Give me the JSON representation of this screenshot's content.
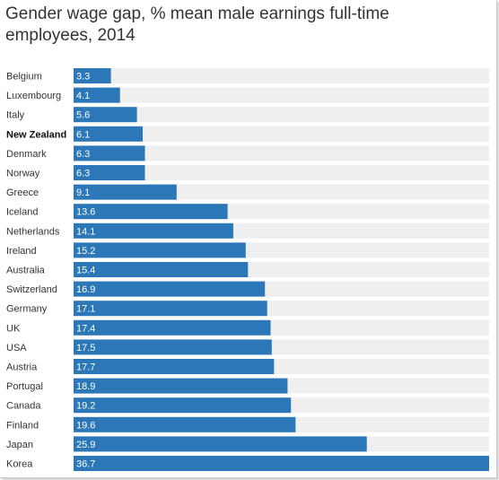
{
  "chart_data": {
    "type": "bar",
    "orientation": "horizontal",
    "title": "Gender wage gap, % mean male earnings full-time employees, 2014",
    "xlabel": "",
    "ylabel": "",
    "xlim": [
      0,
      36.7
    ],
    "grid": false,
    "highlight_category": "New Zealand",
    "colors": {
      "bar": "#2b77b7",
      "track": "#efefef",
      "text": "#333333"
    },
    "categories": [
      "Belgium",
      "Luxembourg",
      "Italy",
      "New Zealand",
      "Denmark",
      "Norway",
      "Greece",
      "Iceland",
      "Netherlands",
      "Ireland",
      "Australia",
      "Switzerland",
      "Germany",
      "UK",
      "USA",
      "Austria",
      "Portugal",
      "Canada",
      "Finland",
      "Japan",
      "Korea"
    ],
    "values": [
      3.3,
      4.1,
      5.6,
      6.1,
      6.3,
      6.3,
      9.1,
      13.6,
      14.1,
      15.2,
      15.4,
      16.9,
      17.1,
      17.4,
      17.5,
      17.7,
      18.9,
      19.2,
      19.6,
      25.9,
      36.7
    ],
    "value_labels": [
      "3.3",
      "4.1",
      "5.6",
      "6.1",
      "6.3",
      "6.3",
      "9.1",
      "13.6",
      "14.1",
      "15.2",
      "15.4",
      "16.9",
      "17.1",
      "17.4",
      "17.5",
      "17.7",
      "18.9",
      "19.2",
      "19.6",
      "25.9",
      "36.7"
    ]
  }
}
